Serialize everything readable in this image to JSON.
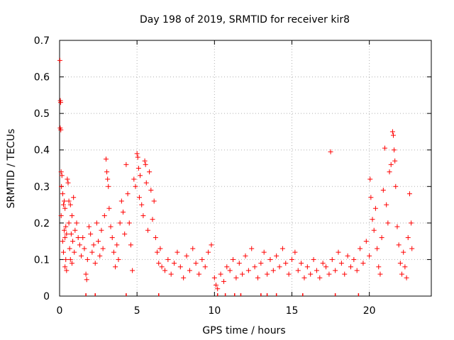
{
  "chart_data": {
    "type": "scatter",
    "title": "Day 198 of 2019, SRMTID for receiver kir8",
    "xlabel": "GPS time / hours",
    "ylabel": "SRMTID / TECUs",
    "xlim": [
      0,
      24
    ],
    "ylim": [
      0,
      0.7
    ],
    "xticks": [
      0,
      5,
      10,
      15,
      20
    ],
    "xtick_labels": [
      "0",
      "5",
      "10",
      "15",
      "20"
    ],
    "yticks": [
      0,
      0.1,
      0.2,
      0.3,
      0.4,
      0.5,
      0.6,
      0.7
    ],
    "ytick_labels": [
      "0",
      "0.1",
      "0.2",
      "0.3",
      "0.4",
      "0.5",
      "0.6",
      "0.7"
    ],
    "grid": true,
    "marker": "+",
    "marker_color": "#ff0000",
    "series": [
      {
        "name": "SRMTID",
        "points": [
          [
            0.02,
            0.645
          ],
          [
            0.05,
            0.535
          ],
          [
            0.07,
            0.53
          ],
          [
            0.04,
            0.46
          ],
          [
            0.08,
            0.455
          ],
          [
            0.1,
            0.34
          ],
          [
            0.15,
            0.33
          ],
          [
            0.12,
            0.3
          ],
          [
            0.2,
            0.28
          ],
          [
            0.1,
            0.22
          ],
          [
            0.25,
            0.25
          ],
          [
            0.3,
            0.26
          ],
          [
            0.35,
            0.24
          ],
          [
            0.4,
            0.19
          ],
          [
            0.45,
            0.17
          ],
          [
            0.5,
            0.32
          ],
          [
            0.55,
            0.31
          ],
          [
            0.6,
            0.2
          ],
          [
            0.3,
            0.18
          ],
          [
            0.35,
            0.16
          ],
          [
            0.2,
            0.15
          ],
          [
            0.25,
            0.12
          ],
          [
            0.4,
            0.1
          ],
          [
            0.35,
            0.08
          ],
          [
            0.45,
            0.07
          ],
          [
            0.6,
            0.26
          ],
          [
            0.7,
            0.25
          ],
          [
            0.8,
            0.22
          ],
          [
            0.9,
            0.27
          ],
          [
            0.75,
            0.17
          ],
          [
            0.85,
            0.15
          ],
          [
            0.65,
            0.13
          ],
          [
            0.95,
            0.12
          ],
          [
            0.7,
            0.1
          ],
          [
            0.8,
            0.09
          ],
          [
            1.0,
            0.18
          ],
          [
            1.1,
            0.2
          ],
          [
            1.2,
            0.16
          ],
          [
            1.3,
            0.14
          ],
          [
            1.4,
            0.11
          ],
          [
            1.5,
            0.16
          ],
          [
            1.6,
            0.13
          ],
          [
            1.7,
            0.06
          ],
          [
            1.75,
            0.045
          ],
          [
            1.8,
            0.1
          ],
          [
            1.9,
            0.19
          ],
          [
            2.0,
            0.17
          ],
          [
            2.1,
            0.12
          ],
          [
            2.2,
            0.14
          ],
          [
            2.3,
            0.09
          ],
          [
            2.4,
            0.2
          ],
          [
            2.5,
            0.15
          ],
          [
            2.6,
            0.11
          ],
          [
            2.7,
            0.18
          ],
          [
            2.8,
            0.13
          ],
          [
            2.9,
            0.22
          ],
          [
            3.0,
            0.375
          ],
          [
            3.05,
            0.34
          ],
          [
            3.1,
            0.32
          ],
          [
            3.15,
            0.3
          ],
          [
            3.2,
            0.24
          ],
          [
            3.3,
            0.19
          ],
          [
            3.4,
            0.16
          ],
          [
            3.5,
            0.12
          ],
          [
            3.6,
            0.08
          ],
          [
            3.7,
            0.14
          ],
          [
            3.8,
            0.1
          ],
          [
            3.9,
            0.2
          ],
          [
            4.0,
            0.26
          ],
          [
            4.1,
            0.23
          ],
          [
            4.2,
            0.17
          ],
          [
            4.3,
            0.36
          ],
          [
            4.4,
            0.28
          ],
          [
            4.5,
            0.2
          ],
          [
            4.6,
            0.14
          ],
          [
            4.7,
            0.07
          ],
          [
            4.8,
            0.32
          ],
          [
            4.9,
            0.3
          ],
          [
            5.0,
            0.39
          ],
          [
            5.05,
            0.38
          ],
          [
            5.1,
            0.35
          ],
          [
            5.15,
            0.27
          ],
          [
            5.2,
            0.33
          ],
          [
            5.3,
            0.25
          ],
          [
            5.4,
            0.22
          ],
          [
            5.5,
            0.37
          ],
          [
            5.55,
            0.36
          ],
          [
            5.6,
            0.31
          ],
          [
            5.7,
            0.18
          ],
          [
            5.8,
            0.34
          ],
          [
            5.9,
            0.29
          ],
          [
            6.0,
            0.21
          ],
          [
            6.1,
            0.26
          ],
          [
            6.2,
            0.16
          ],
          [
            6.3,
            0.12
          ],
          [
            6.4,
            0.09
          ],
          [
            6.5,
            0.13
          ],
          [
            6.6,
            0.08
          ],
          [
            6.8,
            0.07
          ],
          [
            7.0,
            0.1
          ],
          [
            7.2,
            0.06
          ],
          [
            7.4,
            0.09
          ],
          [
            7.6,
            0.12
          ],
          [
            7.8,
            0.08
          ],
          [
            8.0,
            0.05
          ],
          [
            8.2,
            0.11
          ],
          [
            8.4,
            0.07
          ],
          [
            8.6,
            0.13
          ],
          [
            8.8,
            0.09
          ],
          [
            9.0,
            0.06
          ],
          [
            9.2,
            0.1
          ],
          [
            9.4,
            0.08
          ],
          [
            9.6,
            0.12
          ],
          [
            9.8,
            0.14
          ],
          [
            10.0,
            0.05
          ],
          [
            10.1,
            0.03
          ],
          [
            10.2,
            0.02
          ],
          [
            10.4,
            0.06
          ],
          [
            10.6,
            0.04
          ],
          [
            10.8,
            0.08
          ],
          [
            11.0,
            0.07
          ],
          [
            11.2,
            0.1
          ],
          [
            11.4,
            0.05
          ],
          [
            11.6,
            0.09
          ],
          [
            11.8,
            0.06
          ],
          [
            12.0,
            0.11
          ],
          [
            12.2,
            0.07
          ],
          [
            12.4,
            0.13
          ],
          [
            12.6,
            0.08
          ],
          [
            12.8,
            0.05
          ],
          [
            13.0,
            0.09
          ],
          [
            13.2,
            0.12
          ],
          [
            13.4,
            0.06
          ],
          [
            13.6,
            0.1
          ],
          [
            13.8,
            0.07
          ],
          [
            14.0,
            0.11
          ],
          [
            14.2,
            0.08
          ],
          [
            14.4,
            0.13
          ],
          [
            14.6,
            0.09
          ],
          [
            14.8,
            0.06
          ],
          [
            15.0,
            0.1
          ],
          [
            15.2,
            0.12
          ],
          [
            15.4,
            0.07
          ],
          [
            15.6,
            0.09
          ],
          [
            15.8,
            0.05
          ],
          [
            16.0,
            0.08
          ],
          [
            16.2,
            0.06
          ],
          [
            16.4,
            0.1
          ],
          [
            16.6,
            0.07
          ],
          [
            16.8,
            0.05
          ],
          [
            17.0,
            0.09
          ],
          [
            17.2,
            0.08
          ],
          [
            17.5,
            0.395
          ],
          [
            17.4,
            0.06
          ],
          [
            17.6,
            0.1
          ],
          [
            17.8,
            0.07
          ],
          [
            18.0,
            0.12
          ],
          [
            18.2,
            0.09
          ],
          [
            18.4,
            0.06
          ],
          [
            18.6,
            0.11
          ],
          [
            18.8,
            0.08
          ],
          [
            19.0,
            0.1
          ],
          [
            19.2,
            0.07
          ],
          [
            19.4,
            0.13
          ],
          [
            19.6,
            0.09
          ],
          [
            19.8,
            0.15
          ],
          [
            20.0,
            0.11
          ],
          [
            20.05,
            0.32
          ],
          [
            20.1,
            0.27
          ],
          [
            20.2,
            0.21
          ],
          [
            20.3,
            0.18
          ],
          [
            20.4,
            0.24
          ],
          [
            20.5,
            0.13
          ],
          [
            20.6,
            0.08
          ],
          [
            20.7,
            0.06
          ],
          [
            20.8,
            0.16
          ],
          [
            20.9,
            0.29
          ],
          [
            21.0,
            0.405
          ],
          [
            21.1,
            0.25
          ],
          [
            21.2,
            0.2
          ],
          [
            21.3,
            0.34
          ],
          [
            21.4,
            0.36
          ],
          [
            21.5,
            0.45
          ],
          [
            21.55,
            0.44
          ],
          [
            21.6,
            0.4
          ],
          [
            21.65,
            0.37
          ],
          [
            21.7,
            0.3
          ],
          [
            21.8,
            0.19
          ],
          [
            21.9,
            0.14
          ],
          [
            22.0,
            0.09
          ],
          [
            22.1,
            0.06
          ],
          [
            22.2,
            0.12
          ],
          [
            22.3,
            0.08
          ],
          [
            22.4,
            0.05
          ],
          [
            22.5,
            0.16
          ],
          [
            22.6,
            0.28
          ],
          [
            22.7,
            0.2
          ],
          [
            22.75,
            0.13
          ]
        ],
        "baseline_marks_x": [
          1.7,
          2.3,
          4.3,
          6.4,
          10.2,
          10.7,
          11.3,
          11.7,
          13.0,
          13.4,
          14.0,
          15.7,
          17.8,
          19.3
        ]
      }
    ]
  }
}
